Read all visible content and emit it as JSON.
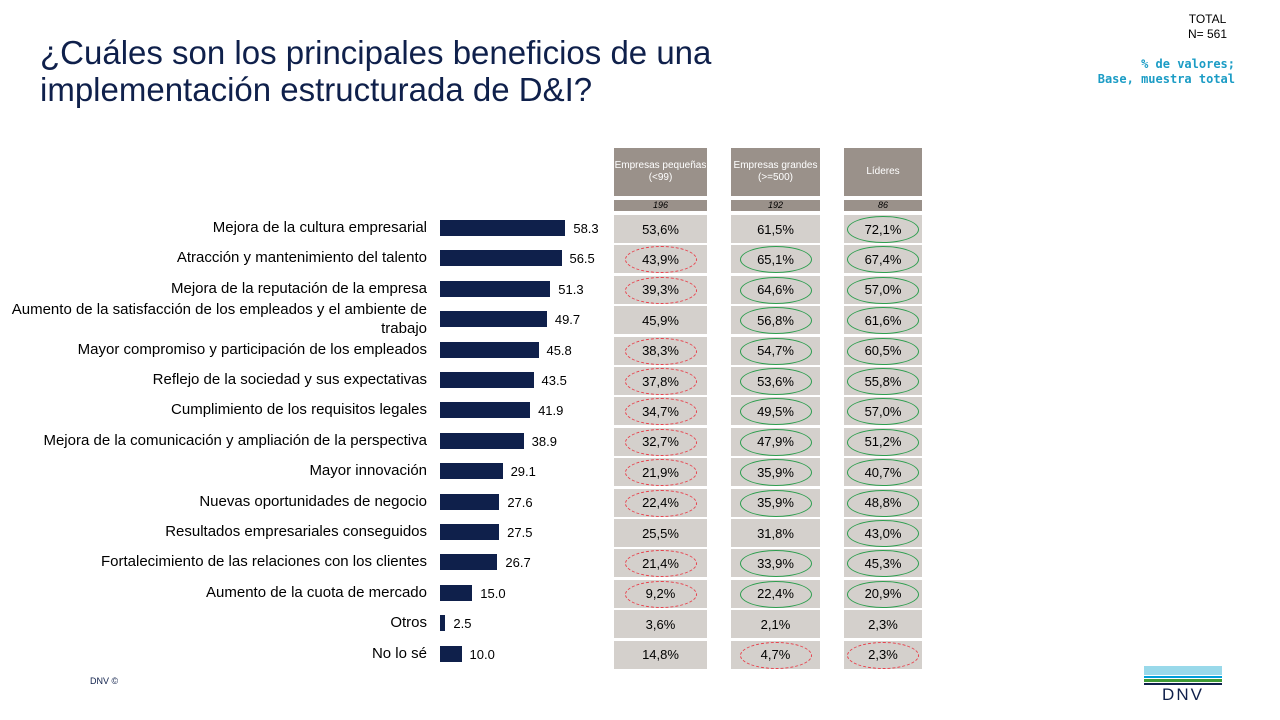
{
  "title": "¿Cuáles son los principales beneficios de una implementación estructurada de D&I?",
  "total_label": "TOTAL",
  "total_n": "N= 561",
  "note": "% de valores;\nBase, muestra total",
  "copyright": "DNV ©",
  "logo_text": "DNV",
  "colors": {
    "bar": "#0f204b",
    "header": "#9a918a",
    "cell": "#d4d0cc",
    "green": "#2e9e4f",
    "red": "#e8414c"
  },
  "chart_data": {
    "type": "bar",
    "orientation": "horizontal",
    "title": "¿Cuáles son los principales beneficios de una implementación estructurada de D&I?",
    "xlim": [
      0,
      100
    ],
    "categories": [
      "Mejora de la cultura empresarial",
      "Atracción y mantenimiento del talento",
      "Mejora de la reputación de la empresa",
      "Aumento de la satisfacción de los empleados y el ambiente de trabajo",
      "Mayor compromiso y participación de los empleados",
      "Reflejo de la sociedad y sus expectativas",
      "Cumplimiento de los requisitos legales",
      "Mejora de la comunicación y ampliación de la perspectiva",
      "Mayor innovación",
      "Nuevas oportunidades de negocio",
      "Resultados empresariales conseguidos",
      "Fortalecimiento de las relaciones con los clientes",
      "Aumento de la cuota de mercado",
      "Otros",
      "No lo sé"
    ],
    "values": [
      58.3,
      56.5,
      51.3,
      49.7,
      45.8,
      43.5,
      41.9,
      38.9,
      29.1,
      27.6,
      27.5,
      26.7,
      15.0,
      2.5,
      10.0
    ],
    "value_labels": [
      "58.3",
      "56.5",
      "51.3",
      "49.7",
      "45.8",
      "43.5",
      "41.9",
      "38.9",
      "29.1",
      "27.6",
      "27.5",
      "26.7",
      "15.0",
      "2.5",
      "10.0"
    ],
    "segments": [
      {
        "name": "Empresas pequeñas (<99)",
        "n": "196",
        "values": [
          "53,6%",
          "43,9%",
          "39,3%",
          "45,9%",
          "38,3%",
          "37,8%",
          "34,7%",
          "32,7%",
          "21,9%",
          "22,4%",
          "25,5%",
          "21,4%",
          "9,2%",
          "3,6%",
          "14,8%"
        ],
        "marks": [
          "",
          "red",
          "red",
          "",
          "red",
          "red",
          "red",
          "red",
          "red",
          "red",
          "",
          "red",
          "red",
          "",
          ""
        ]
      },
      {
        "name": "Empresas grandes (>=500)",
        "n": "192",
        "values": [
          "61,5%",
          "65,1%",
          "64,6%",
          "56,8%",
          "54,7%",
          "53,6%",
          "49,5%",
          "47,9%",
          "35,9%",
          "35,9%",
          "31,8%",
          "33,9%",
          "22,4%",
          "2,1%",
          "4,7%"
        ],
        "marks": [
          "",
          "green",
          "green",
          "green",
          "green",
          "green",
          "green",
          "green",
          "green",
          "green",
          "",
          "green",
          "green",
          "",
          "red"
        ]
      },
      {
        "name": "Líderes",
        "n": "86",
        "values": [
          "72,1%",
          "67,4%",
          "57,0%",
          "61,6%",
          "60,5%",
          "55,8%",
          "57,0%",
          "51,2%",
          "40,7%",
          "48,8%",
          "43,0%",
          "45,3%",
          "20,9%",
          "2,3%",
          "2,3%"
        ],
        "marks": [
          "green",
          "green",
          "green",
          "green",
          "green",
          "green",
          "green",
          "green",
          "green",
          "green",
          "green",
          "green",
          "green",
          "",
          "red"
        ]
      }
    ]
  }
}
